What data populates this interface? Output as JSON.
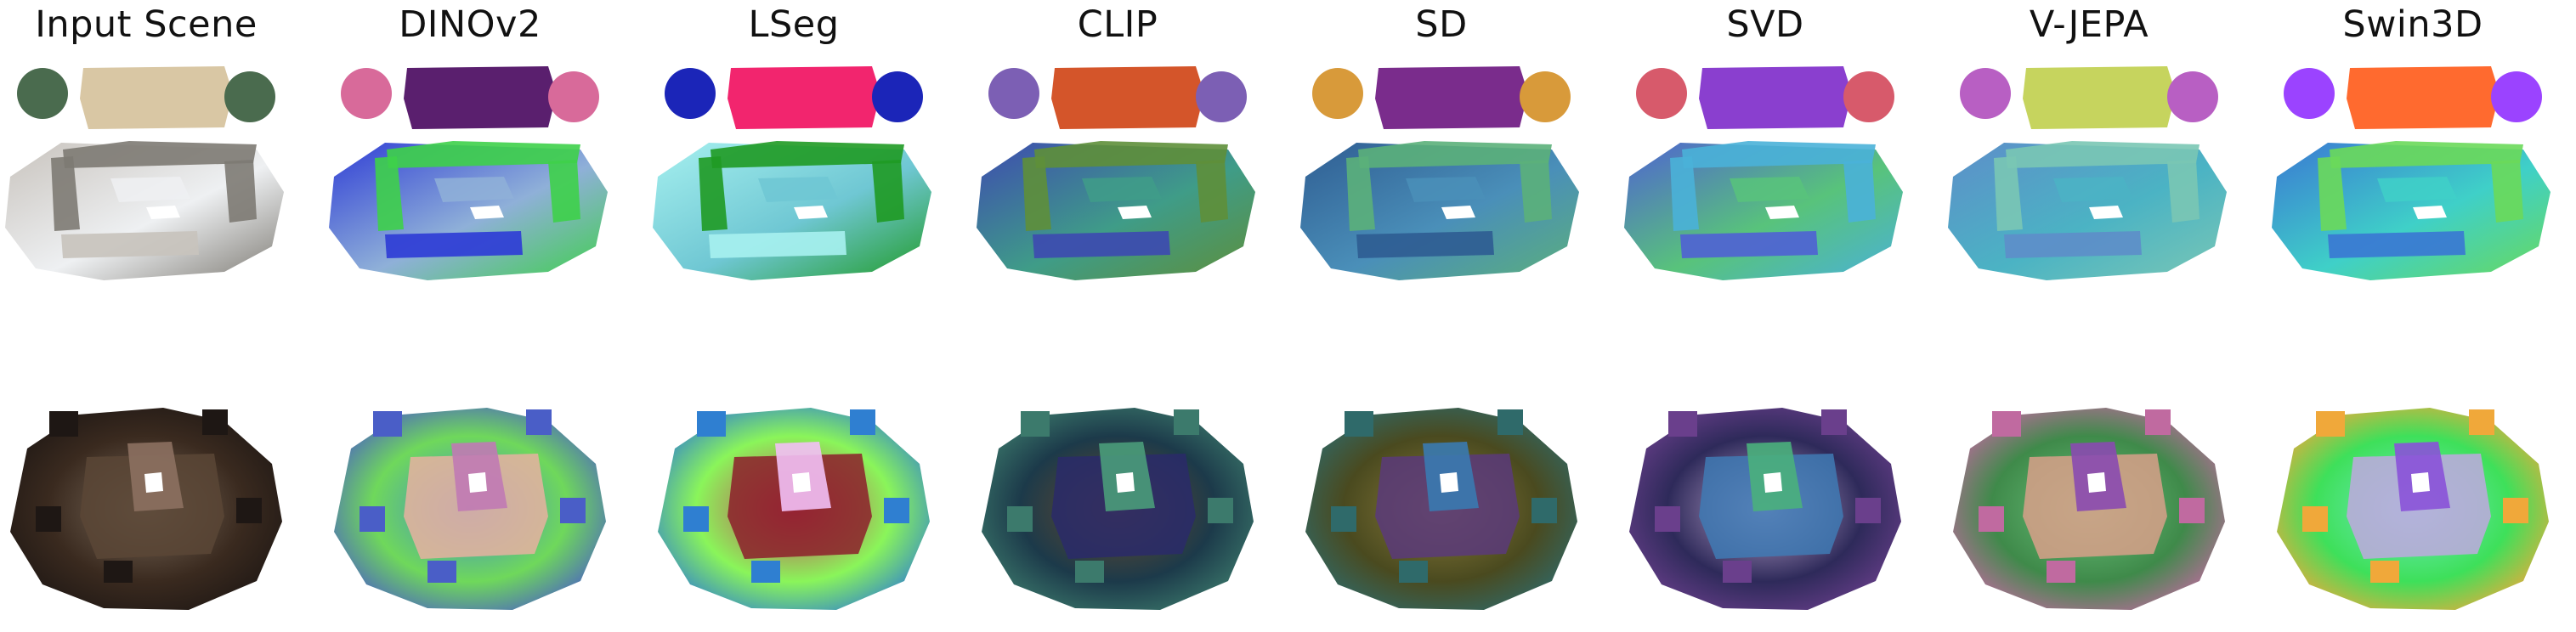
{
  "columns": [
    {
      "label": "Input Scene",
      "style": "rgb"
    },
    {
      "label": "DINOv2",
      "style": "feature"
    },
    {
      "label": "LSeg",
      "style": "feature"
    },
    {
      "label": "CLIP",
      "style": "feature"
    },
    {
      "label": "SD",
      "style": "feature"
    },
    {
      "label": "SVD",
      "style": "feature"
    },
    {
      "label": "V-JEPA",
      "style": "feature"
    },
    {
      "label": "Swin3D",
      "style": "feature"
    }
  ],
  "rows": [
    {
      "scene": "living-room-scene",
      "palettes": [
        [
          "#c8c3bd",
          "#7d7a73",
          "#d9c7a4",
          "#4a6b4e",
          "#eef0f2"
        ],
        [
          "#2f3dd6",
          "#3ed04a",
          "#5a1f6e",
          "#d86a9a",
          "#8fb0d8"
        ],
        [
          "#a6f0ef",
          "#1f9a24",
          "#f2256e",
          "#1b25b8",
          "#6fc7d3"
        ],
        [
          "#3d4bb0",
          "#5e8f3a",
          "#d4552a",
          "#7c5fb4",
          "#3f9c88"
        ],
        [
          "#2f5d92",
          "#5bb07a",
          "#7a2c8c",
          "#d89a3a",
          "#4a8fb9"
        ],
        [
          "#4f63d2",
          "#4ab1d8",
          "#8a3fcf",
          "#d75a6b",
          "#58c37b"
        ],
        [
          "#5d8ec9",
          "#7ac7b4",
          "#c6d45e",
          "#b85fc3",
          "#4bb3c4"
        ],
        [
          "#3a78d3",
          "#6ad95a",
          "#ff6a2f",
          "#9b43ff",
          "#3fd0c8"
        ]
      ]
    },
    {
      "scene": "lounge-scene",
      "palettes": [
        [
          "#3a2a1f",
          "#1e1714",
          "#5b4636",
          "#7a6a5a",
          "#8c7060"
        ],
        [
          "#6fd85b",
          "#4a5ec7",
          "#e8b2a0",
          "#3f8ad0",
          "#c07ab4"
        ],
        [
          "#8af55a",
          "#2f7fd1",
          "#8c1e2c",
          "#c93b5b",
          "#f2c0f5"
        ],
        [
          "#1c3a4a",
          "#3c7a6c",
          "#2a2a6a",
          "#6a4a2c",
          "#4a9c7a"
        ],
        [
          "#4a4a1f",
          "#2f6a6a",
          "#5a3a7a",
          "#8a7a3a",
          "#3a7ab0"
        ],
        [
          "#2e2a5a",
          "#6a3f8c",
          "#3f7ab4",
          "#c0a8d0",
          "#4ab07c"
        ],
        [
          "#3f8a4a",
          "#c06aa0",
          "#d8a08a",
          "#6ac07a",
          "#8a4ab0"
        ],
        [
          "#3ee05a",
          "#f0a83a",
          "#c0a8e0",
          "#6fe8c0",
          "#8a52d8"
        ]
      ]
    }
  ]
}
